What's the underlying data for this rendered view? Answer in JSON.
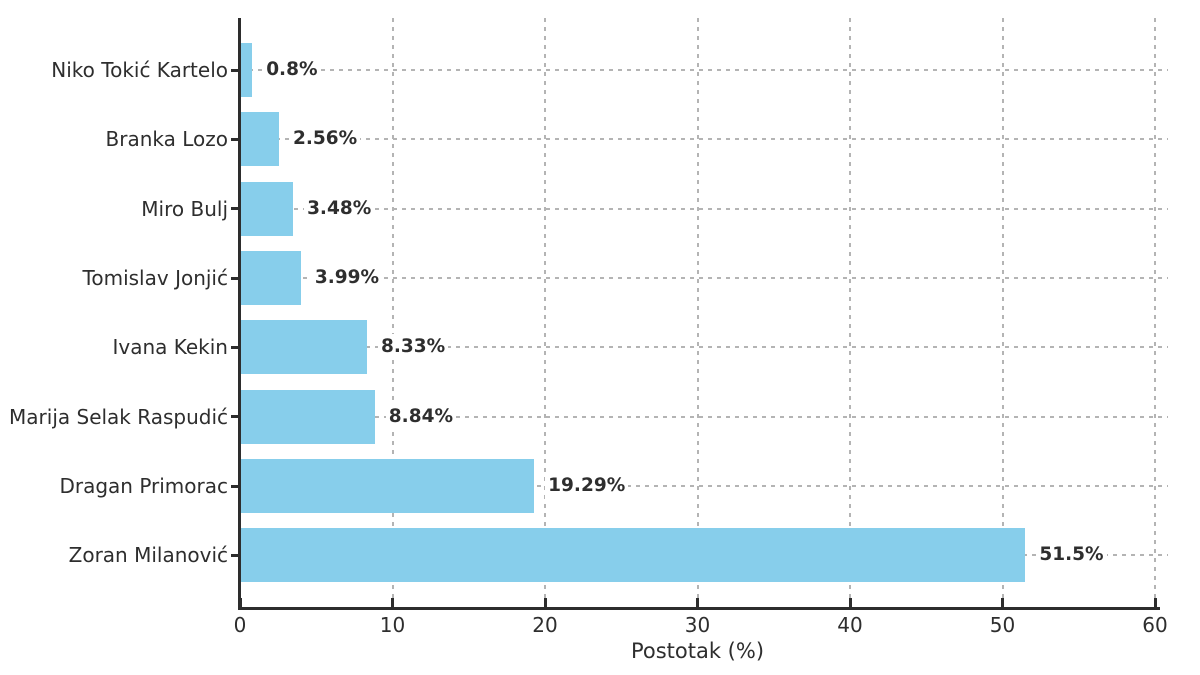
{
  "chart_data": {
    "type": "bar",
    "orientation": "horizontal",
    "title": "",
    "xlabel": "Postotak (%)",
    "ylabel": "",
    "categories": [
      "Niko Tokić Kartelo",
      "Branka Lozo",
      "Miro Bulj",
      "Tomislav Jonjić",
      "Ivana Kekin",
      "Marija Selak Raspudić",
      "Dragan Primorac",
      "Zoran Milanović"
    ],
    "values": [
      0.8,
      2.56,
      3.48,
      3.99,
      8.33,
      8.84,
      19.29,
      51.5
    ],
    "value_labels": [
      "0.8%",
      "2.56%",
      "3.48%",
      "3.99%",
      "8.33%",
      "8.84%",
      "19.29%",
      "51.5%"
    ],
    "xlim": [
      0,
      60
    ],
    "xticks": [
      0,
      10,
      20,
      30,
      40,
      50,
      60
    ],
    "grid": true,
    "legend": false,
    "bar_color": "#87CEEB",
    "axis_color": "#2d2d2d",
    "grid_color": "#b4b4b4",
    "text_color": "#2e2e2e"
  }
}
